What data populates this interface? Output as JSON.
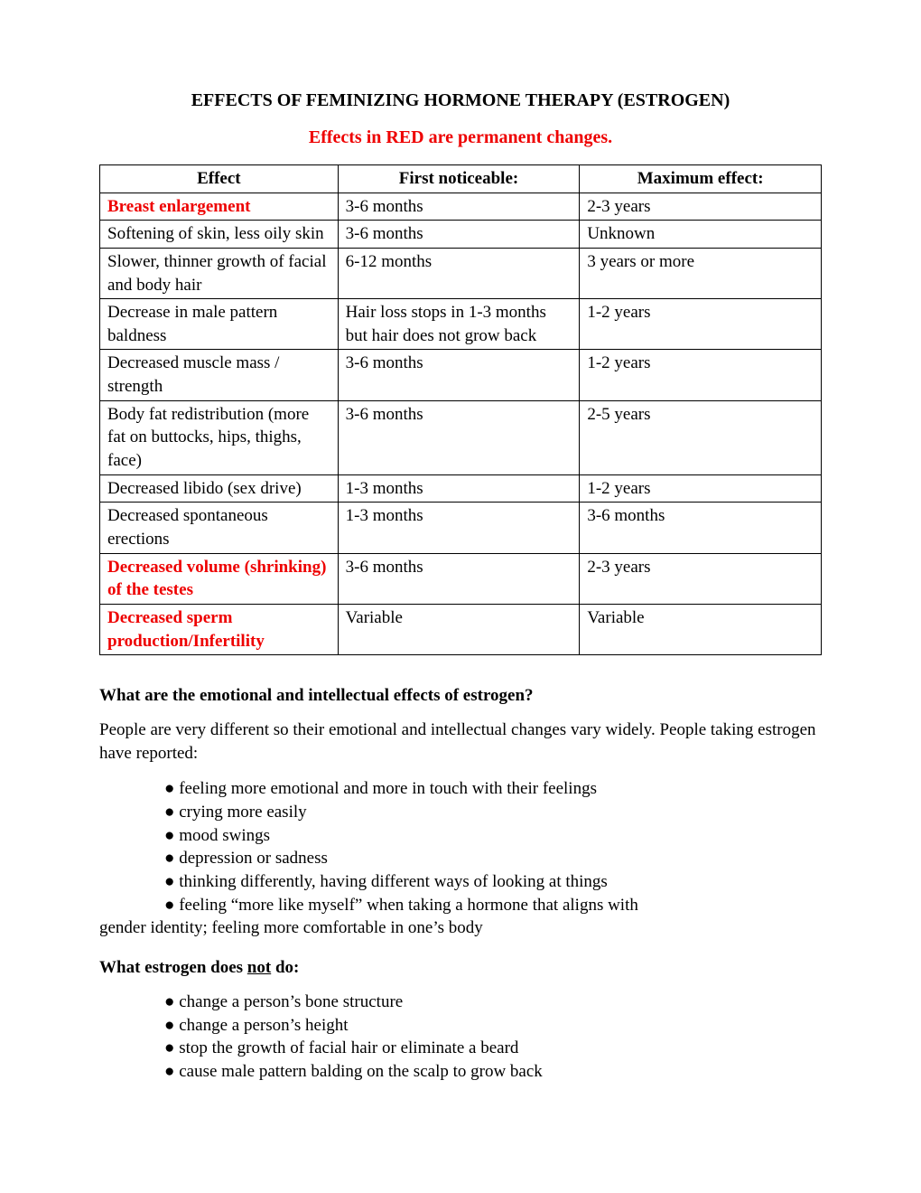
{
  "title": "EFFECTS OF FEMINIZING HORMONE THERAPY (ESTROGEN)",
  "subtitle": "Effects in RED are permanent changes.",
  "colors": {
    "permanent_text": "#ee0000",
    "body_text": "#000000",
    "background": "#ffffff",
    "border": "#000000"
  },
  "typography": {
    "font_family": "Georgia, 'Times New Roman', serif",
    "title_fontsize": 20,
    "body_fontsize": 19
  },
  "table": {
    "headers": [
      "Effect",
      "First noticeable:",
      "Maximum effect:"
    ],
    "rows": [
      {
        "effect": "Breast enlargement",
        "first": "3-6 months",
        "max": "2-3 years",
        "permanent": true
      },
      {
        "effect": "Softening of skin, less oily skin",
        "first": "3-6 months",
        "max": "Unknown",
        "permanent": false
      },
      {
        "effect": "Slower, thinner growth of facial and body hair",
        "first": "6-12 months",
        "max": "3 years or more",
        "permanent": false
      },
      {
        "effect": "Decrease in male pattern baldness",
        "first": "Hair loss stops in 1-3 months but hair does not grow back",
        "max": "1-2 years",
        "permanent": false
      },
      {
        "effect": "Decreased muscle mass / strength",
        "first": "3-6 months",
        "max": "1-2 years",
        "permanent": false
      },
      {
        "effect": "Body fat redistribution (more fat on buttocks, hips, thighs, face)",
        "first": "3-6 months",
        "max": "2-5 years",
        "permanent": false
      },
      {
        "effect": "Decreased libido (sex drive)",
        "first": "1-3 months",
        "max": "1-2 years",
        "permanent": false
      },
      {
        "effect": "Decreased spontaneous erections",
        "first": "1-3 months",
        "max": "3-6 months",
        "permanent": false
      },
      {
        "effect": "Decreased volume (shrinking) of the testes",
        "first": "3-6 months",
        "max": "2-3 years",
        "permanent": true
      },
      {
        "effect": "Decreased sperm production/Infertility",
        "first": "Variable",
        "max": "Variable",
        "permanent": true
      }
    ]
  },
  "sections": {
    "emotional": {
      "heading": "What are the emotional and intellectual effects of estrogen?",
      "intro": "People are very different so their emotional and intellectual changes vary widely.  People taking estrogen have reported:",
      "bullets": [
        "feeling more emotional and more in touch with their feelings",
        "crying more easily",
        "mood swings",
        "depression or sadness",
        "thinking differently, having different ways of looking at things"
      ],
      "last_bullet_line1": "feeling “more like myself” when taking a hormone that aligns with",
      "last_bullet_line2": "gender identity; feeling more comfortable in one’s body"
    },
    "does_not": {
      "heading_prefix": "What estrogen does ",
      "heading_underlined": "not",
      "heading_suffix": " do:",
      "bullets": [
        "change a person’s bone structure",
        "change a person’s height",
        "stop the growth of facial hair or eliminate a beard",
        "cause male pattern balding on the scalp to grow back"
      ]
    }
  }
}
